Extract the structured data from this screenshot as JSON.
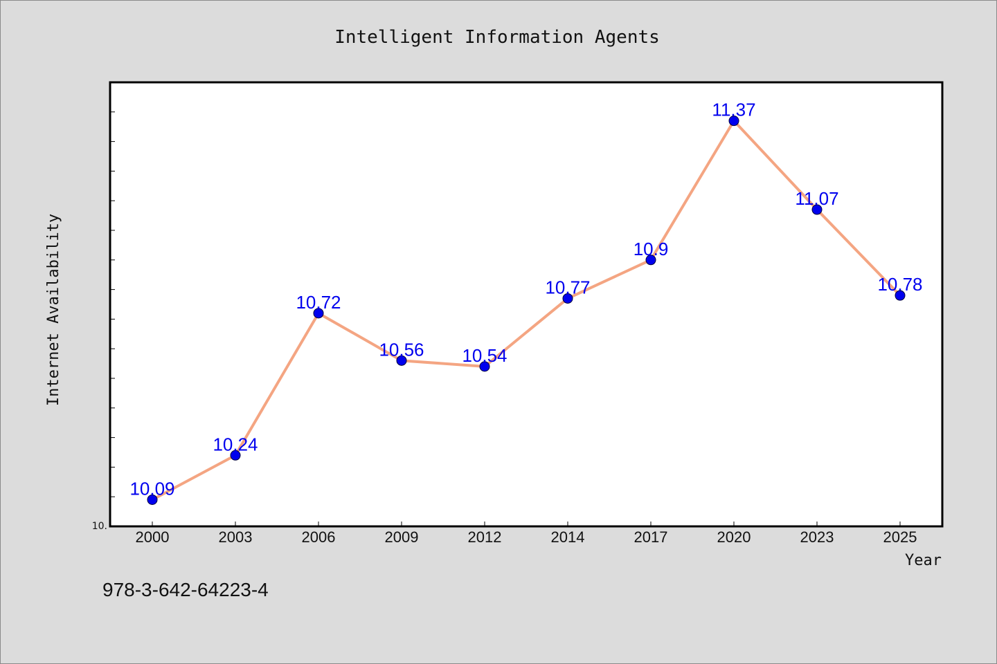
{
  "chart_data": {
    "type": "line",
    "title": "Intelligent Information Agents",
    "xlabel": "Year",
    "ylabel": "Internet Availability",
    "categories": [
      "2000",
      "2003",
      "2006",
      "2009",
      "2012",
      "2014",
      "2017",
      "2020",
      "2023",
      "2025"
    ],
    "values": [
      10.09,
      10.24,
      10.72,
      10.56,
      10.54,
      10.77,
      10.9,
      11.37,
      11.07,
      10.78
    ],
    "data_labels": [
      "10.09",
      "10.24",
      "10.72",
      "10.56",
      "10.54",
      "10.77",
      "10.9",
      "11.37",
      "11.07",
      "10.78"
    ],
    "ylim": [
      10.0,
      11.5
    ],
    "yticks": [
      10.0
    ],
    "ytick_labels": [
      "10."
    ],
    "grid": false,
    "colors": {
      "line": "#f4a582",
      "marker": "#0000ee",
      "label": "#0000ee"
    }
  },
  "footer": {
    "isbn": "978-3-642-64223-4"
  }
}
